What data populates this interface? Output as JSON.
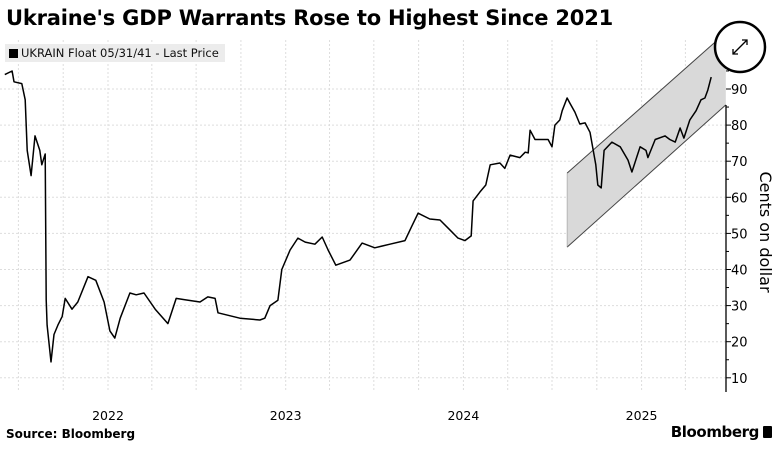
{
  "chart_data": {
    "type": "line",
    "title": "Ukraine's GDP Warrants Rose to Highest Since 2021",
    "ylabel": "Cents on dollar",
    "xlabel": "",
    "ylim": [
      6,
      102
    ],
    "yticks": [
      10,
      20,
      30,
      40,
      50,
      60,
      70,
      80,
      90
    ],
    "xticks": [
      {
        "date": "2022-01-01",
        "label": "2022"
      },
      {
        "date": "2023-01-01",
        "label": "2023"
      },
      {
        "date": "2024-01-01",
        "label": "2024"
      },
      {
        "date": "2025-01-01",
        "label": "2025"
      }
    ],
    "grid": true,
    "y_axis_side": "right",
    "legend_position": "top-left",
    "series": [
      {
        "name": "UKRAIN Float 05/31/41 - Last Price",
        "color": "#000000",
        "points": [
          [
            "2021-06-03",
            94
          ],
          [
            "2021-06-18",
            95
          ],
          [
            "2021-06-22",
            92
          ],
          [
            "2021-07-08",
            91.5
          ],
          [
            "2021-07-15",
            87
          ],
          [
            "2021-07-19",
            73
          ],
          [
            "2021-07-27",
            66
          ],
          [
            "2021-08-04",
            77
          ],
          [
            "2021-08-14",
            73
          ],
          [
            "2021-08-18",
            69
          ],
          [
            "2021-08-25",
            72
          ],
          [
            "2021-08-27",
            31.6
          ],
          [
            "2021-08-29",
            24.6
          ],
          [
            "2021-09-06",
            14.4
          ],
          [
            "2021-09-12",
            22
          ],
          [
            "2021-09-20",
            24.6
          ],
          [
            "2021-09-29",
            27
          ],
          [
            "2021-10-05",
            32
          ],
          [
            "2021-10-19",
            29
          ],
          [
            "2021-10-31",
            31
          ],
          [
            "2021-11-21",
            38
          ],
          [
            "2021-12-07",
            37
          ],
          [
            "2021-12-24",
            31
          ],
          [
            "2022-01-05",
            23
          ],
          [
            "2022-01-15",
            21
          ],
          [
            "2022-01-26",
            26.5
          ],
          [
            "2022-02-15",
            33.5
          ],
          [
            "2022-02-28",
            33
          ],
          [
            "2022-03-16",
            33.5
          ],
          [
            "2022-04-08",
            29
          ],
          [
            "2022-05-04",
            25
          ],
          [
            "2022-05-21",
            32
          ],
          [
            "2022-06-08",
            31.6
          ],
          [
            "2022-07-09",
            31
          ],
          [
            "2022-07-25",
            32.4
          ],
          [
            "2022-08-09",
            32
          ],
          [
            "2022-08-15",
            28
          ],
          [
            "2022-09-29",
            26.5
          ],
          [
            "2022-11-09",
            26
          ],
          [
            "2022-11-19",
            26.5
          ],
          [
            "2022-11-30",
            30
          ],
          [
            "2022-12-16",
            31.5
          ],
          [
            "2022-12-24",
            40
          ],
          [
            "2023-01-10",
            45.4
          ],
          [
            "2023-01-26",
            48.7
          ],
          [
            "2023-02-10",
            47.6
          ],
          [
            "2023-03-02",
            47
          ],
          [
            "2023-03-17",
            49
          ],
          [
            "2023-03-29",
            45.4
          ],
          [
            "2023-04-14",
            41.2
          ],
          [
            "2023-05-13",
            42.6
          ],
          [
            "2023-06-07",
            47.3
          ],
          [
            "2023-07-03",
            46
          ],
          [
            "2023-08-03",
            47
          ],
          [
            "2023-09-03",
            48
          ],
          [
            "2023-09-17",
            52
          ],
          [
            "2023-09-30",
            55.6
          ],
          [
            "2023-10-24",
            54
          ],
          [
            "2023-11-14",
            53.7
          ],
          [
            "2023-12-04",
            51
          ],
          [
            "2023-12-21",
            48.7
          ],
          [
            "2024-01-04",
            48
          ],
          [
            "2024-01-17",
            49.3
          ],
          [
            "2024-01-21",
            59
          ],
          [
            "2024-02-04",
            61.5
          ],
          [
            "2024-02-16",
            63.4
          ],
          [
            "2024-02-25",
            69
          ],
          [
            "2024-03-16",
            69.5
          ],
          [
            "2024-03-26",
            68
          ],
          [
            "2024-04-06",
            71.7
          ],
          [
            "2024-04-26",
            71
          ],
          [
            "2024-05-07",
            72.5
          ],
          [
            "2024-05-13",
            72.3
          ],
          [
            "2024-05-17",
            78.6
          ],
          [
            "2024-05-27",
            76
          ],
          [
            "2024-06-23",
            76
          ],
          [
            "2024-07-01",
            74
          ],
          [
            "2024-07-07",
            80
          ],
          [
            "2024-07-17",
            81.4
          ],
          [
            "2024-07-22",
            84
          ],
          [
            "2024-08-01",
            87.5
          ],
          [
            "2024-08-07",
            86
          ],
          [
            "2024-08-17",
            83.6
          ],
          [
            "2024-08-27",
            80.3
          ],
          [
            "2024-09-07",
            80.6
          ],
          [
            "2024-09-17",
            78
          ],
          [
            "2024-09-29",
            69
          ],
          [
            "2024-10-03",
            63.4
          ],
          [
            "2024-10-10",
            62.6
          ],
          [
            "2024-10-16",
            73
          ],
          [
            "2024-11-01",
            75.3
          ],
          [
            "2024-11-18",
            74
          ],
          [
            "2024-12-04",
            70.3
          ],
          [
            "2024-12-12",
            67
          ],
          [
            "2024-12-29",
            74
          ],
          [
            "2025-01-10",
            73
          ],
          [
            "2025-01-14",
            71
          ],
          [
            "2025-01-29",
            76
          ],
          [
            "2025-02-18",
            77
          ],
          [
            "2025-02-28",
            76
          ],
          [
            "2025-03-11",
            75.3
          ],
          [
            "2025-03-21",
            79.2
          ],
          [
            "2025-03-29",
            76.4
          ],
          [
            "2025-04-10",
            81.4
          ],
          [
            "2025-04-23",
            84
          ],
          [
            "2025-05-03",
            87
          ],
          [
            "2025-05-11",
            87.5
          ],
          [
            "2025-05-17",
            89.7
          ],
          [
            "2025-05-24",
            93.3
          ]
        ]
      }
    ],
    "annotations": [
      {
        "type": "channel",
        "fill": "#d9d9d9",
        "start": "2024-08-01",
        "end": "2025-06-23",
        "upper": [
          66.7,
          105.6
        ],
        "lower": [
          46.2,
          85.6
        ]
      }
    ]
  },
  "expand_icon": "expand-arrows-icon",
  "footer": {
    "source": "Source: Bloomberg",
    "brand": "Bloomberg"
  }
}
